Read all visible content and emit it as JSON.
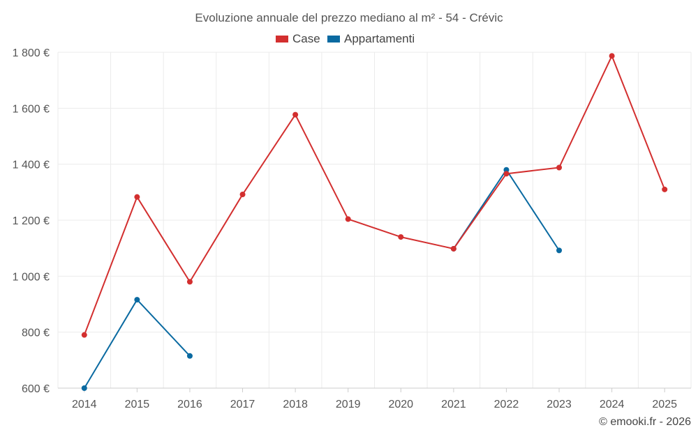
{
  "chart_data": {
    "type": "line",
    "title": "Evoluzione annuale del prezzo mediano al m² - 54 - Crévic",
    "xlabel": "",
    "ylabel": "",
    "categories": [
      "2014",
      "2015",
      "2016",
      "2017",
      "2018",
      "2019",
      "2020",
      "2021",
      "2022",
      "2023",
      "2024",
      "2025"
    ],
    "y_ticks": [
      "600 €",
      "800 €",
      "1 000 €",
      "1 200 €",
      "1 400 €",
      "1 600 €",
      "1 800 €"
    ],
    "y_tick_values": [
      600,
      800,
      1000,
      1200,
      1400,
      1600,
      1800
    ],
    "ylim": [
      600,
      1800
    ],
    "grid": true,
    "legend_position": "top-center",
    "series": [
      {
        "name": "Case",
        "color": "#d32f2f",
        "values": [
          790,
          1283,
          980,
          1292,
          1577,
          1204,
          1140,
          1098,
          1366,
          1388,
          1787,
          1310
        ]
      },
      {
        "name": "Appartamenti",
        "color": "#0a6aa1",
        "values": [
          600,
          916,
          715,
          null,
          null,
          null,
          null,
          1098,
          1380,
          1092,
          null,
          null
        ]
      }
    ],
    "credit": "© emooki.fr - 2026"
  }
}
